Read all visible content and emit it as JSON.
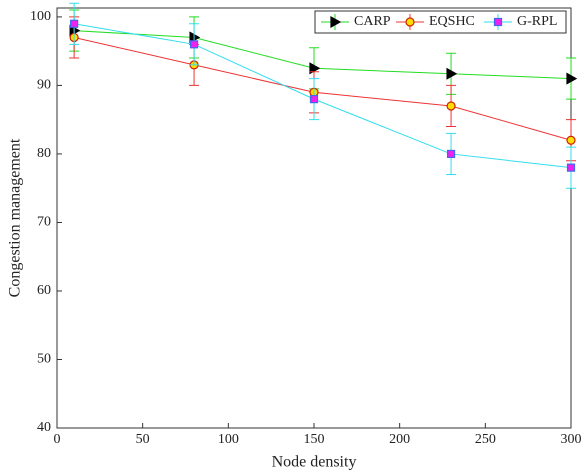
{
  "chart_data": {
    "type": "line",
    "x": [
      10,
      80,
      150,
      230,
      300
    ],
    "x_label": "Node density",
    "y_label": "Congestion management",
    "xlim": [
      0,
      300
    ],
    "xticks": [
      0,
      50,
      100,
      150,
      200,
      250,
      300
    ],
    "ylim": [
      40,
      101.3
    ],
    "yticks": [
      40,
      50,
      60,
      70,
      80,
      90,
      100
    ],
    "legend": "top-right",
    "series": [
      {
        "name": "CARP",
        "color": "#22dd22",
        "marker": "triangle-right",
        "marker_fill": "#000000",
        "marker_edge": "#000000",
        "values": [
          98,
          97,
          92.5,
          91.7,
          91
        ],
        "errors": [
          3,
          3,
          3,
          3,
          3
        ]
      },
      {
        "name": "EQSHC",
        "color": "#ee3333",
        "marker": "circle",
        "marker_fill": "#ffdd00",
        "marker_edge": "#cc2200",
        "values": [
          97,
          93,
          89,
          87,
          82
        ],
        "errors": [
          3,
          3,
          3,
          3,
          3
        ]
      },
      {
        "name": "G-RPL",
        "color": "#33ddee",
        "marker": "square",
        "marker_fill": "#ee22ee",
        "marker_edge": "#4466ee",
        "values": [
          99,
          96,
          88,
          80,
          78
        ],
        "errors": [
          3,
          3,
          3,
          3,
          3
        ]
      }
    ]
  }
}
